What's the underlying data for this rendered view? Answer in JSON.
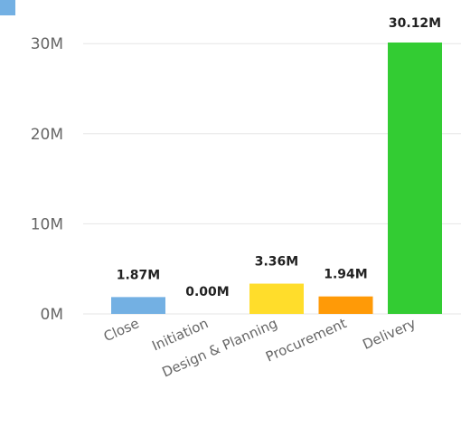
{
  "chart_data": {
    "type": "bar",
    "categories": [
      "Close",
      "Initiation",
      "Design & Planning",
      "Procurement",
      "Delivery"
    ],
    "values": [
      1.87,
      0.0,
      3.36,
      1.94,
      30.12
    ],
    "value_labels": [
      "1.87M",
      "0.00M",
      "3.36M",
      "1.94M",
      "30.12M"
    ],
    "bar_colors": [
      "#73B0E3",
      "#7F7F7F",
      "#FFDD2B",
      "#FF9A07",
      "#33CC33"
    ],
    "unit": "M",
    "yticks": [
      0,
      10,
      20,
      30
    ],
    "ytick_labels": [
      "0M",
      "10M",
      "20M",
      "30M"
    ],
    "ylim": [
      0,
      30.12
    ],
    "grid": true,
    "legend_color": "#73B0E3",
    "title": "",
    "xlabel": "",
    "ylabel": ""
  }
}
